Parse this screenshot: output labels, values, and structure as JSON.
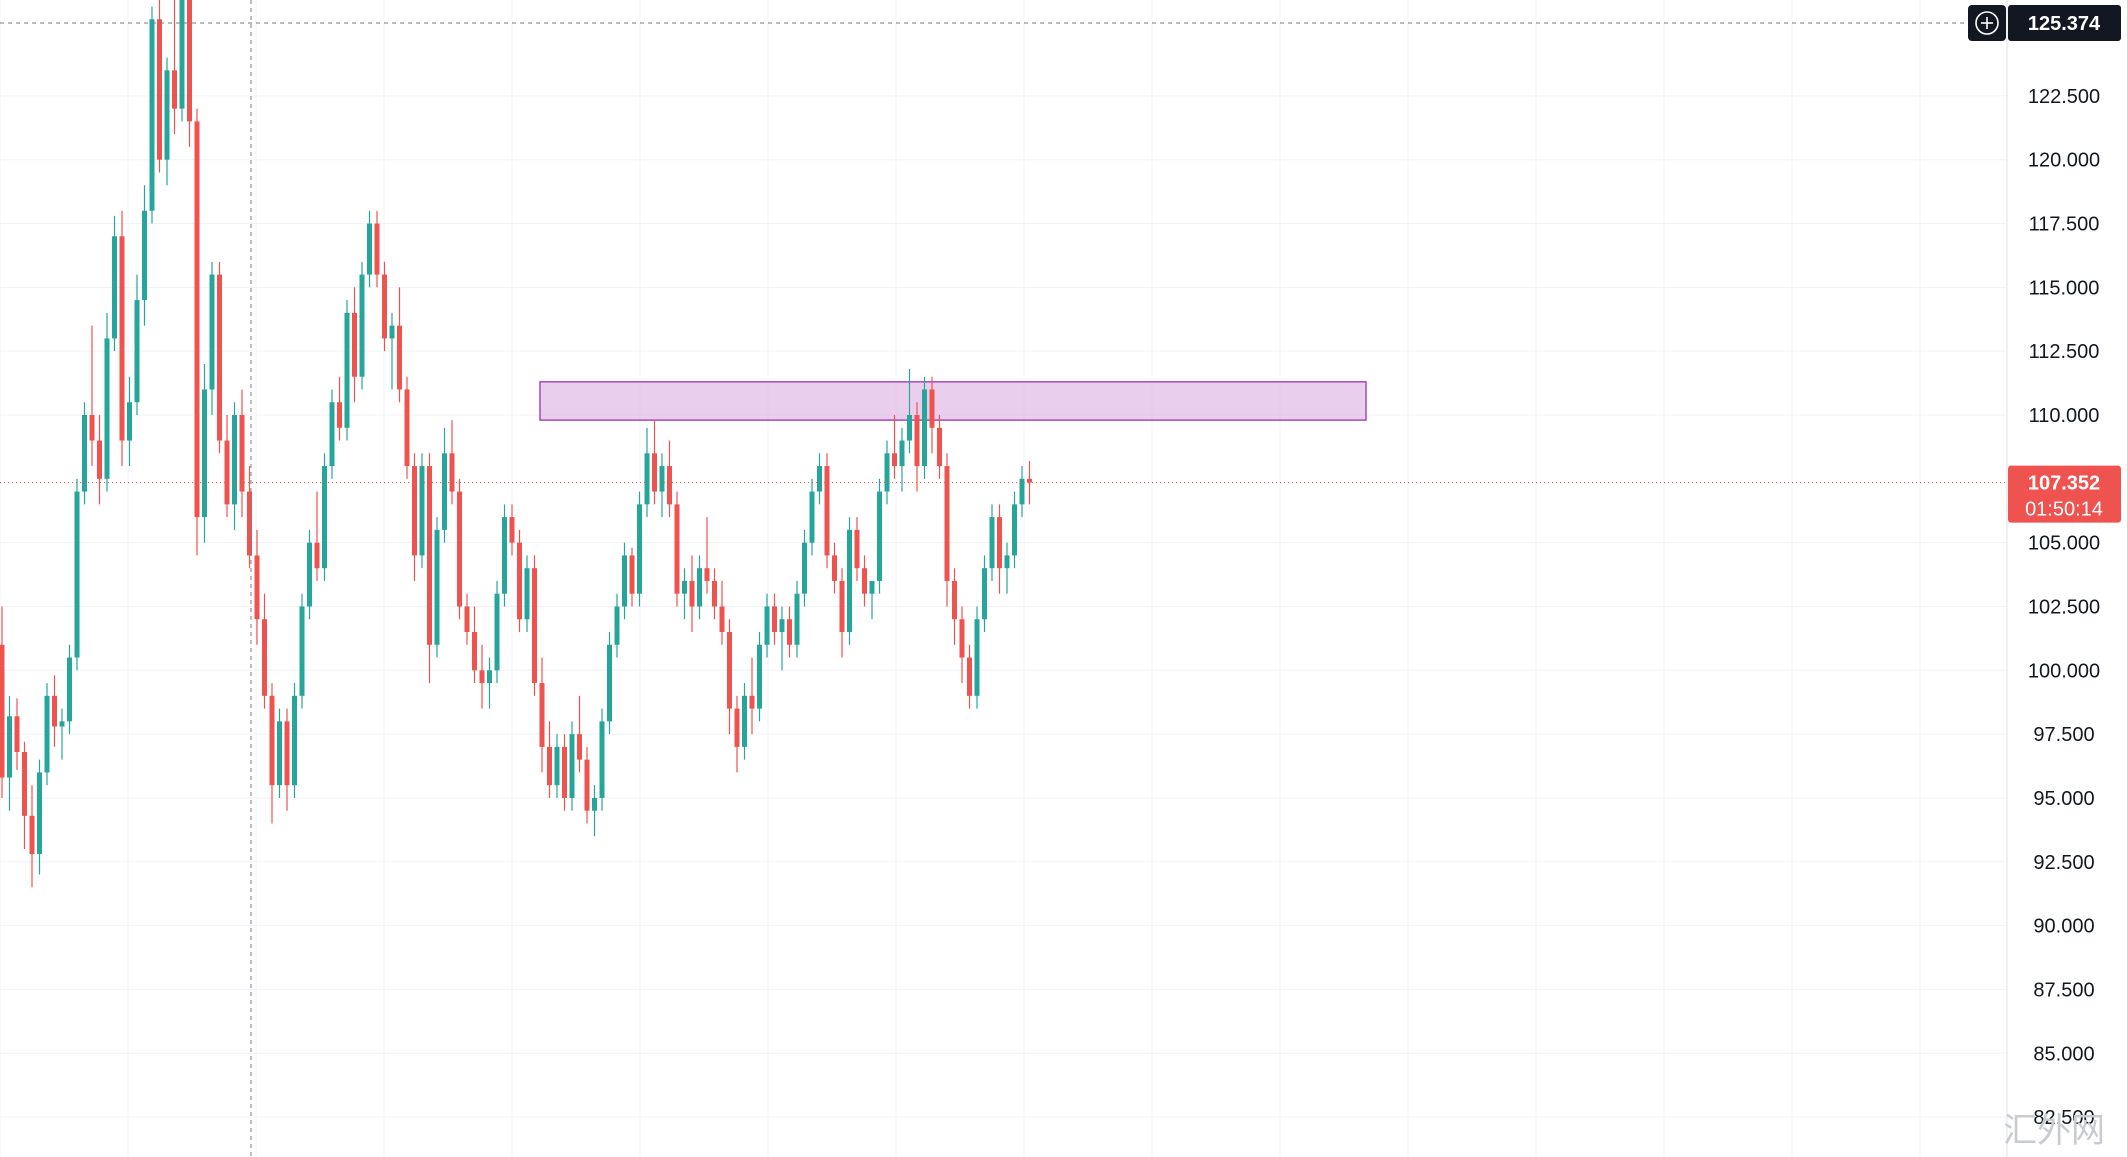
{
  "chart_data": {
    "type": "candlestick",
    "ylim": [
      82.5,
      125.374
    ],
    "y_ticks": [
      "122.500",
      "120.000",
      "117.500",
      "115.000",
      "112.500",
      "110.000",
      "105.000",
      "102.500",
      "100.000",
      "97.500",
      "95.000",
      "92.500",
      "90.000",
      "87.500",
      "85.000",
      "82.500"
    ],
    "crosshair": {
      "price_label": "125.374",
      "price": 125.374
    },
    "current_price": {
      "label": "107.352",
      "price": 107.352,
      "countdown": "01:50:14"
    },
    "zone": {
      "high": 111.3,
      "low": 109.8,
      "color": "#e1bee7",
      "border": "#ab47bc"
    },
    "colors": {
      "up": "#26a69a",
      "down": "#ef5350",
      "grid": "#f0f3fa",
      "badge_dark": "#131722",
      "badge_red": "#ef5350"
    },
    "candles": [
      [
        101.0,
        102.5,
        95.0,
        95.8
      ],
      [
        95.8,
        99.0,
        94.5,
        98.2
      ],
      [
        98.2,
        98.9,
        96.1,
        96.8
      ],
      [
        96.8,
        97.2,
        93.0,
        94.3
      ],
      [
        94.3,
        95.5,
        91.5,
        92.8
      ],
      [
        92.8,
        96.5,
        92.0,
        96.0
      ],
      [
        96.0,
        99.5,
        95.5,
        99.0
      ],
      [
        99.0,
        99.8,
        97.0,
        97.8
      ],
      [
        97.8,
        98.5,
        96.5,
        98.0
      ],
      [
        98.0,
        101.0,
        97.5,
        100.5
      ],
      [
        100.5,
        107.5,
        100.0,
        107.0
      ],
      [
        107.0,
        110.5,
        106.5,
        110.0
      ],
      [
        110.0,
        113.5,
        108.0,
        109.0
      ],
      [
        109.0,
        110.0,
        106.5,
        107.5
      ],
      [
        107.5,
        114.0,
        107.0,
        113.0
      ],
      [
        113.0,
        117.8,
        112.5,
        117.0
      ],
      [
        117.0,
        118.0,
        108.0,
        109.0
      ],
      [
        109.0,
        111.5,
        108.0,
        110.5
      ],
      [
        110.5,
        115.5,
        110.0,
        114.5
      ],
      [
        114.5,
        119.0,
        113.5,
        118.0
      ],
      [
        118.0,
        126.0,
        117.5,
        125.5
      ],
      [
        125.5,
        127.0,
        119.5,
        120.0
      ],
      [
        120.0,
        124.0,
        119.0,
        123.5
      ],
      [
        123.5,
        126.5,
        121.0,
        122.0
      ],
      [
        122.0,
        127.0,
        121.5,
        126.5
      ],
      [
        126.5,
        127.5,
        120.5,
        121.5
      ],
      [
        121.5,
        122.0,
        104.5,
        106.0
      ],
      [
        106.0,
        112.0,
        105.0,
        111.0
      ],
      [
        111.0,
        116.0,
        110.0,
        115.5
      ],
      [
        115.5,
        116.0,
        108.5,
        109.0
      ],
      [
        109.0,
        110.0,
        106.0,
        106.5
      ],
      [
        106.5,
        110.5,
        105.5,
        110.0
      ],
      [
        110.0,
        111.0,
        106.0,
        107.0
      ],
      [
        107.0,
        108.0,
        104.0,
        104.5
      ],
      [
        104.5,
        105.5,
        101.0,
        102.0
      ],
      [
        102.0,
        103.0,
        98.5,
        99.0
      ],
      [
        99.0,
        99.5,
        94.0,
        95.5
      ],
      [
        95.5,
        98.5,
        95.0,
        98.0
      ],
      [
        98.0,
        98.5,
        94.5,
        95.5
      ],
      [
        95.5,
        99.5,
        95.0,
        99.0
      ],
      [
        99.0,
        103.0,
        98.5,
        102.5
      ],
      [
        102.5,
        105.5,
        102.0,
        105.0
      ],
      [
        105.0,
        107.0,
        103.5,
        104.0
      ],
      [
        104.0,
        108.5,
        103.5,
        108.0
      ],
      [
        108.0,
        111.0,
        107.5,
        110.5
      ],
      [
        110.5,
        111.5,
        109.0,
        109.5
      ],
      [
        109.5,
        114.5,
        109.0,
        114.0
      ],
      [
        114.0,
        115.0,
        110.5,
        111.5
      ],
      [
        111.5,
        116.0,
        111.0,
        115.5
      ],
      [
        115.5,
        118.0,
        115.0,
        117.5
      ],
      [
        117.5,
        118.0,
        115.0,
        115.5
      ],
      [
        115.5,
        116.0,
        112.5,
        113.0
      ],
      [
        113.0,
        114.0,
        111.0,
        113.5
      ],
      [
        113.5,
        115.0,
        110.5,
        111.0
      ],
      [
        111.0,
        111.5,
        107.5,
        108.0
      ],
      [
        108.0,
        108.5,
        103.5,
        104.5
      ],
      [
        104.5,
        108.5,
        104.0,
        108.0
      ],
      [
        108.0,
        108.5,
        99.5,
        101.0
      ],
      [
        101.0,
        106.0,
        100.5,
        105.5
      ],
      [
        105.5,
        109.5,
        105.0,
        108.5
      ],
      [
        108.5,
        109.8,
        106.5,
        107.0
      ],
      [
        107.0,
        107.5,
        102.0,
        102.5
      ],
      [
        102.5,
        103.0,
        101.0,
        101.5
      ],
      [
        101.5,
        102.5,
        99.5,
        100.0
      ],
      [
        100.0,
        101.0,
        98.5,
        99.5
      ],
      [
        99.5,
        100.5,
        98.5,
        100.0
      ],
      [
        100.0,
        103.5,
        99.5,
        103.0
      ],
      [
        103.0,
        106.5,
        102.5,
        106.0
      ],
      [
        106.0,
        106.5,
        104.5,
        105.0
      ],
      [
        105.0,
        105.5,
        101.5,
        102.0
      ],
      [
        102.0,
        104.5,
        101.5,
        104.0
      ],
      [
        104.0,
        104.5,
        99.0,
        99.5
      ],
      [
        99.5,
        100.5,
        96.0,
        97.0
      ],
      [
        97.0,
        98.0,
        95.0,
        95.5
      ],
      [
        95.5,
        97.5,
        95.0,
        97.0
      ],
      [
        97.0,
        97.5,
        94.5,
        95.0
      ],
      [
        95.0,
        98.0,
        94.5,
        97.5
      ],
      [
        97.5,
        99.0,
        96.0,
        96.5
      ],
      [
        96.5,
        97.0,
        94.0,
        94.5
      ],
      [
        94.5,
        95.5,
        93.5,
        95.0
      ],
      [
        95.0,
        98.5,
        94.5,
        98.0
      ],
      [
        98.0,
        101.5,
        97.5,
        101.0
      ],
      [
        101.0,
        103.0,
        100.5,
        102.5
      ],
      [
        102.5,
        105.0,
        102.0,
        104.5
      ],
      [
        104.5,
        104.8,
        102.5,
        103.0
      ],
      [
        103.0,
        107.0,
        102.5,
        106.5
      ],
      [
        106.5,
        109.5,
        106.0,
        108.5
      ],
      [
        108.5,
        109.8,
        106.5,
        107.0
      ],
      [
        107.0,
        108.5,
        106.0,
        108.0
      ],
      [
        108.0,
        109.0,
        106.0,
        106.5
      ],
      [
        106.5,
        107.0,
        102.5,
        103.0
      ],
      [
        103.0,
        104.0,
        102.0,
        103.5
      ],
      [
        103.5,
        104.5,
        101.5,
        102.5
      ],
      [
        102.5,
        104.5,
        102.0,
        104.0
      ],
      [
        104.0,
        106.0,
        103.0,
        103.5
      ],
      [
        103.5,
        104.0,
        102.0,
        102.5
      ],
      [
        102.5,
        103.5,
        101.0,
        101.5
      ],
      [
        101.5,
        102.0,
        97.5,
        98.5
      ],
      [
        98.5,
        99.0,
        96.0,
        97.0
      ],
      [
        97.0,
        99.5,
        96.5,
        99.0
      ],
      [
        99.0,
        100.5,
        97.5,
        98.5
      ],
      [
        98.5,
        101.5,
        98.0,
        101.0
      ],
      [
        101.0,
        103.0,
        100.5,
        102.5
      ],
      [
        102.5,
        103.0,
        101.0,
        101.5
      ],
      [
        101.5,
        102.5,
        100.0,
        102.0
      ],
      [
        102.0,
        102.5,
        100.5,
        101.0
      ],
      [
        101.0,
        103.5,
        100.5,
        103.0
      ],
      [
        103.0,
        105.5,
        102.5,
        105.0
      ],
      [
        105.0,
        107.5,
        104.5,
        107.0
      ],
      [
        107.0,
        108.5,
        106.5,
        108.0
      ],
      [
        108.0,
        108.5,
        104.0,
        104.5
      ],
      [
        104.5,
        105.0,
        103.0,
        103.5
      ],
      [
        103.5,
        104.0,
        100.5,
        101.5
      ],
      [
        101.5,
        106.0,
        101.0,
        105.5
      ],
      [
        105.5,
        106.0,
        103.5,
        104.0
      ],
      [
        104.0,
        104.5,
        102.5,
        103.0
      ],
      [
        103.0,
        103.5,
        102.0,
        103.5
      ],
      [
        103.5,
        107.5,
        103.0,
        107.0
      ],
      [
        107.0,
        109.0,
        106.5,
        108.5
      ],
      [
        108.5,
        110.0,
        107.5,
        108.0
      ],
      [
        108.0,
        109.5,
        107.0,
        109.0
      ],
      [
        109.0,
        111.8,
        108.5,
        110.0
      ],
      [
        110.0,
        110.5,
        107.0,
        108.0
      ],
      [
        108.0,
        111.5,
        107.5,
        111.0
      ],
      [
        111.0,
        111.5,
        108.5,
        109.5
      ],
      [
        109.5,
        110.0,
        107.5,
        108.0
      ],
      [
        108.0,
        108.5,
        102.5,
        103.5
      ],
      [
        103.5,
        104.0,
        101.0,
        102.0
      ],
      [
        102.0,
        102.5,
        99.5,
        100.5
      ],
      [
        100.5,
        101.0,
        98.5,
        99.0
      ],
      [
        99.0,
        102.5,
        98.5,
        102.0
      ],
      [
        102.0,
        104.5,
        101.5,
        104.0
      ],
      [
        104.0,
        106.5,
        103.5,
        106.0
      ],
      [
        106.0,
        106.5,
        103.0,
        104.0
      ],
      [
        104.0,
        105.0,
        103.0,
        104.5
      ],
      [
        104.5,
        107.0,
        104.0,
        106.5
      ],
      [
        106.5,
        108.0,
        106.0,
        107.5
      ],
      [
        107.5,
        108.2,
        106.5,
        107.352
      ]
    ]
  },
  "watermark": {
    "text": "汇外网"
  }
}
